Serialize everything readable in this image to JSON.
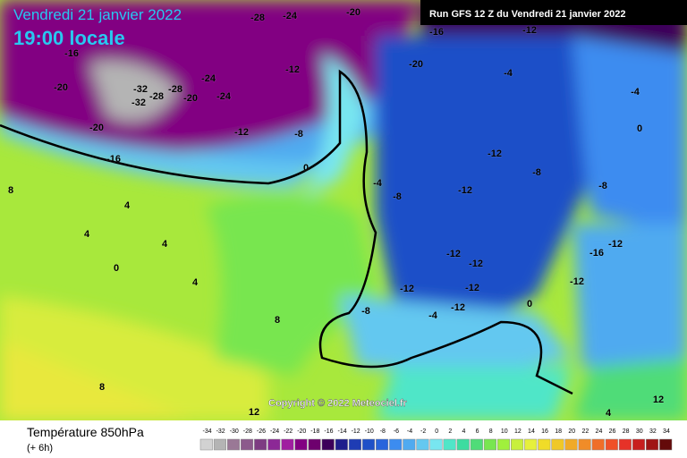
{
  "header": {
    "date": "Vendredi 21 janvier 2022",
    "time_label": "19:00 locale"
  },
  "run_info": "Run GFS 12 Z du Vendredi 21 janvier 2022",
  "copyright": "Copyright © 2022 Meteociel.fr",
  "legend": {
    "title": "Température 850hPa",
    "step": "(+ 6h)"
  },
  "scale": {
    "values": [
      -34,
      -32,
      -30,
      -28,
      -26,
      -24,
      -22,
      -20,
      -18,
      -16,
      -14,
      -12,
      -10,
      -8,
      -6,
      -4,
      -2,
      0,
      2,
      4,
      6,
      8,
      10,
      12,
      14,
      16,
      18,
      20,
      22,
      24,
      26,
      28,
      30,
      32,
      34
    ],
    "colors": [
      "#d2d2d2",
      "#b4b4b4",
      "#9a7896",
      "#8c5a8c",
      "#7d3c82",
      "#8c2896",
      "#a01ea0",
      "#820082",
      "#6e006e",
      "#3c005a",
      "#1e1e8c",
      "#1e3cb4",
      "#1e50c8",
      "#2864dc",
      "#3c8cf0",
      "#50aaf0",
      "#64c8f0",
      "#78e6f0",
      "#50e6c8",
      "#3cdca0",
      "#50dc78",
      "#78e650",
      "#a0f03c",
      "#c8f03c",
      "#e6f03c",
      "#f0dc28",
      "#f0c828",
      "#f0aa28",
      "#f08c28",
      "#f06e28",
      "#f05028",
      "#e63228",
      "#c81e1e",
      "#a01414",
      "#640a0a"
    ]
  },
  "map_labels": [
    "-16",
    "-28",
    "-24",
    "-20",
    "-16",
    "-12",
    "-20",
    "-32",
    "-32",
    "-28",
    "-28",
    "-24",
    "-20",
    "-24",
    "-20",
    "-20",
    "-16",
    "-12",
    "-12",
    "-8",
    "0",
    "-4",
    "-8",
    "-12",
    "-12",
    "-8",
    "-8",
    "-4",
    "-4",
    "0",
    "8",
    "4",
    "4",
    "4",
    "0",
    "4",
    "8",
    "8",
    "12",
    "-12",
    "-12",
    "-12",
    "-12",
    "-8",
    "-4",
    "-12",
    "0",
    "4",
    "12",
    "-16",
    "-12",
    "-12"
  ]
}
